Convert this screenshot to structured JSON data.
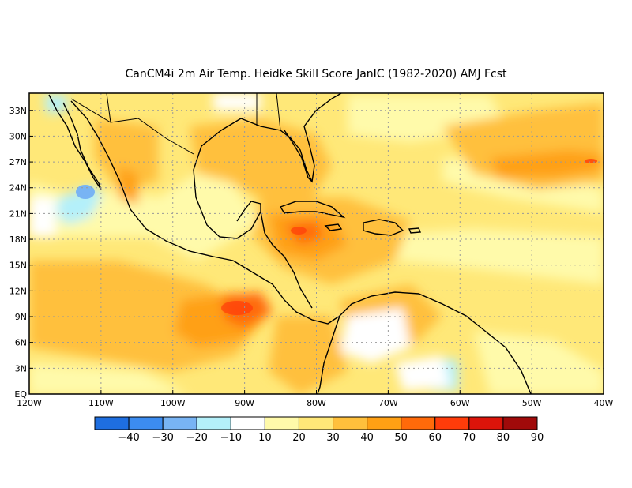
{
  "title": "CanCM4i  2m Air Temp. Heidke Skill Score JanIC (1982-2020) AMJ Fcst",
  "chart_data": {
    "type": "heatmap",
    "title": "CanCM4i  2m Air Temp. Heidke Skill Score JanIC (1982-2020) AMJ Fcst",
    "x_ticks": [
      "120W",
      "110W",
      "100W",
      "90W",
      "80W",
      "70W",
      "60W",
      "50W",
      "40W"
    ],
    "y_ticks": [
      "EQ",
      "3N",
      "6N",
      "9N",
      "12N",
      "15N",
      "18N",
      "21N",
      "24N",
      "27N",
      "30N",
      "33N"
    ],
    "xlim": [
      -120,
      -40
    ],
    "ylim": [
      0,
      35
    ],
    "grid": true,
    "colorbar": {
      "labels": [
        "-40",
        "-30",
        "-20",
        "-10",
        "10",
        "20",
        "30",
        "40",
        "50",
        "60",
        "70",
        "80",
        "90"
      ],
      "colors": [
        "#1e6ee0",
        "#3c8cf0",
        "#78b4f4",
        "#b4f0fa",
        "#ffffff",
        "#fffaaa",
        "#ffe878",
        "#ffc03c",
        "#ffa014",
        "#ff6a0a",
        "#ff3c0a",
        "#dc140a",
        "#a00a0a"
      ]
    }
  }
}
